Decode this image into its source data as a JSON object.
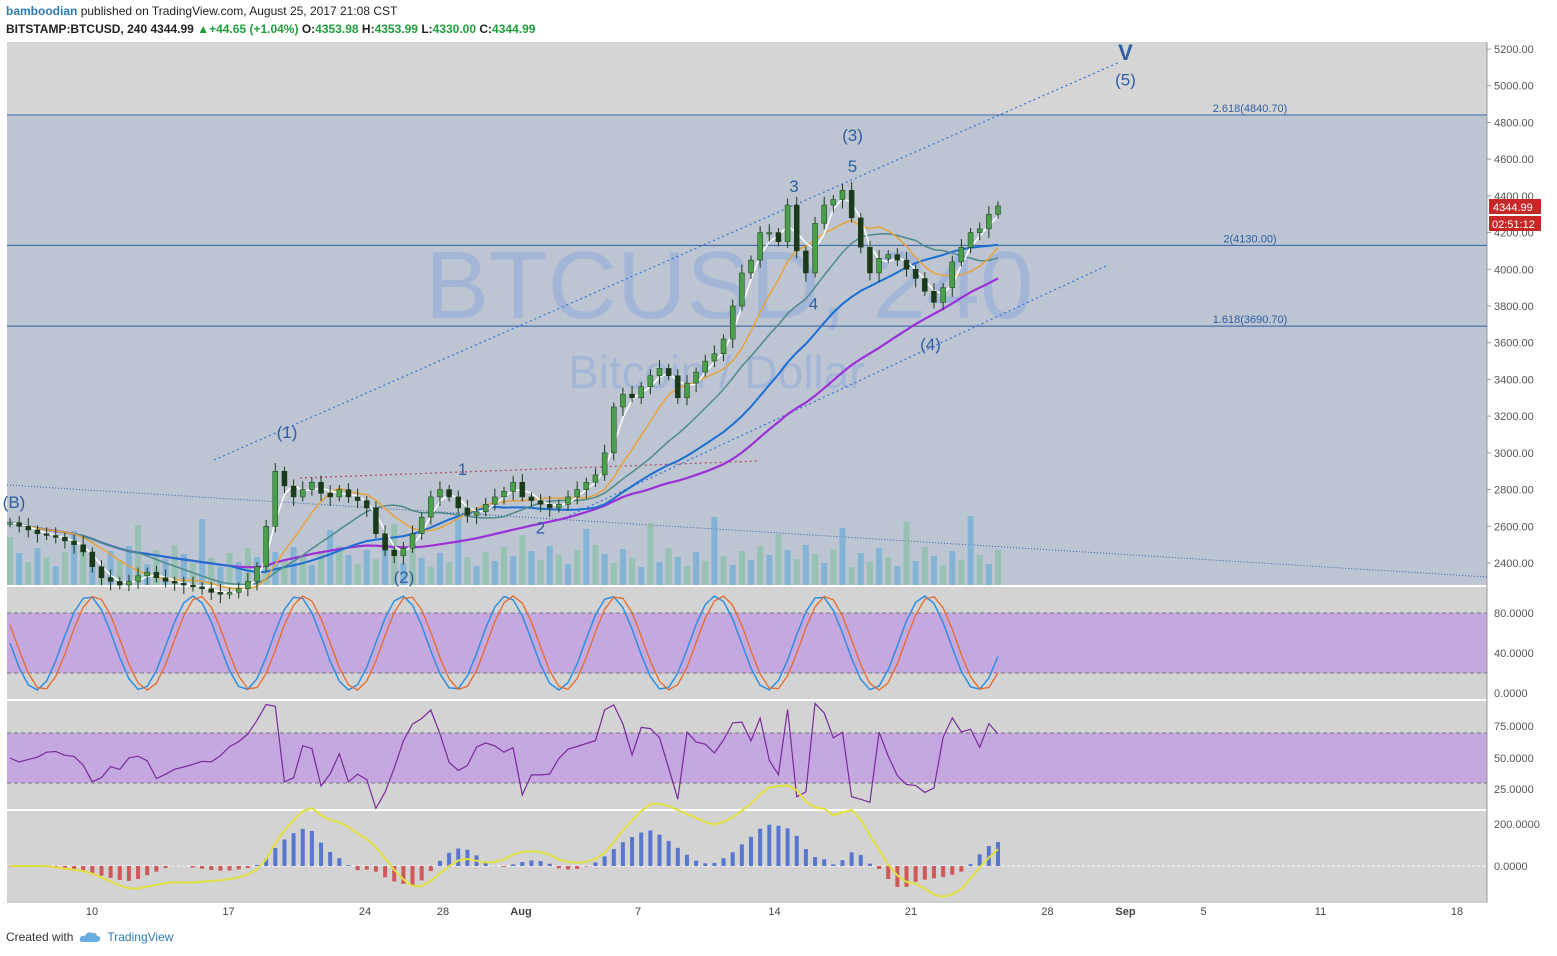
{
  "header": {
    "user": "bamboodian",
    "published": "published on TradingView.com, August 25, 2017 21:08 CST",
    "symbol": "BITSTAMP:BTCUSD, 240",
    "last": "4344.99",
    "change": "▲+44.65 (+1.04%)",
    "o_label": "O:",
    "o": "4353.98",
    "h_label": "H:",
    "h": "4353.99",
    "l_label": "L:",
    "l": "4330.00",
    "c_label": "C:",
    "c": "4344.99"
  },
  "footer": {
    "created": "Created with",
    "brand": "TradingView"
  },
  "colors": {
    "main_bg": "#bcc5d1",
    "osc_bg": "#d3d3d3",
    "osc_band": "#c5a8e0",
    "candle_up": "#2f7a2f",
    "fib_line": "#2e5fa3",
    "sma_purple": "#9b30d8",
    "sma_blue": "#1c6fd1",
    "sma_teal": "#4f8a8a",
    "sma_orange": "#e8a23a",
    "sma_white": "#ffffff",
    "price_tag": "#c62828"
  },
  "chart_data": {
    "type": "candlestick",
    "watermark": "BTCUSD, 240",
    "watermark_sub": "Bitcoin / Dollar",
    "price_axis": [
      "5200.00",
      "5000.00",
      "4800.00",
      "4600.00",
      "4400.00",
      "4200.00",
      "4000.00",
      "3800.00",
      "3600.00",
      "3400.00",
      "3200.00",
      "3000.00",
      "2800.00",
      "2600.00",
      "2400.00"
    ],
    "ylim": [
      2300,
      5200
    ],
    "last_price": "4344.99",
    "countdown": "02:51:12",
    "x_ticks": [
      "10",
      "17",
      "24",
      "28",
      "Aug",
      "7",
      "14",
      "21",
      "28",
      "Sep",
      "5",
      "11",
      "18"
    ],
    "fib_levels": [
      {
        "label": "2.618(4840.70)",
        "price": 4840.7
      },
      {
        "label": "2(4130.00)",
        "price": 4130.0
      },
      {
        "label": "1.618(3690.70)",
        "price": 3690.7
      }
    ],
    "wave_labels": [
      {
        "text": "(B)",
        "date": "Jul 6",
        "price": 2700
      },
      {
        "text": "(1)",
        "date": "Jul 20",
        "price": 3080
      },
      {
        "text": "(2)",
        "date": "Jul 26",
        "price": 2290
      },
      {
        "text": "1",
        "date": "Jul 29",
        "price": 2880
      },
      {
        "text": "2",
        "date": "Aug 2",
        "price": 2560
      },
      {
        "text": "3",
        "date": "Aug 15",
        "price": 4420
      },
      {
        "text": "4",
        "date": "Aug 16",
        "price": 3780
      },
      {
        "text": "(3)",
        "date": "Aug 18",
        "price": 4700
      },
      {
        "text": "5",
        "date": "Aug 18",
        "price": 4530
      },
      {
        "text": "(4)",
        "date": "Aug 22",
        "price": 3560
      },
      {
        "text": "V",
        "date": "Sep 1",
        "price": 5140
      },
      {
        "text": "(5)",
        "date": "Sep 1",
        "price": 5000
      }
    ],
    "candles_close": [
      2620,
      2600,
      2580,
      2560,
      2550,
      2540,
      2520,
      2500,
      2460,
      2380,
      2320,
      2300,
      2280,
      2300,
      2330,
      2350,
      2320,
      2300,
      2290,
      2280,
      2270,
      2260,
      2240,
      2230,
      2240,
      2260,
      2300,
      2380,
      2600,
      2900,
      2820,
      2760,
      2800,
      2840,
      2780,
      2760,
      2800,
      2760,
      2740,
      2700,
      2560,
      2470,
      2440,
      2480,
      2560,
      2650,
      2760,
      2800,
      2760,
      2700,
      2660,
      2680,
      2720,
      2760,
      2790,
      2840,
      2760,
      2740,
      2720,
      2700,
      2720,
      2760,
      2800,
      2840,
      2880,
      3000,
      3250,
      3320,
      3300,
      3360,
      3420,
      3460,
      3420,
      3300,
      3380,
      3440,
      3500,
      3540,
      3620,
      3800,
      3980,
      4050,
      4200,
      4200,
      4150,
      4350,
      4100,
      3980,
      4250,
      4350,
      4380,
      4430,
      4280,
      4120,
      3980,
      4060,
      4080,
      4050,
      4000,
      3950,
      3880,
      3820,
      3900,
      4040,
      4120,
      4200,
      4220,
      4300,
      4344.99
    ],
    "stoch_axis": [
      "80.0000",
      "40.0000",
      "0.0000"
    ],
    "rsi_axis": [
      "75.0000",
      "50.0000",
      "25.0000"
    ],
    "macd_axis": [
      "200.0000",
      "0.0000"
    ]
  }
}
